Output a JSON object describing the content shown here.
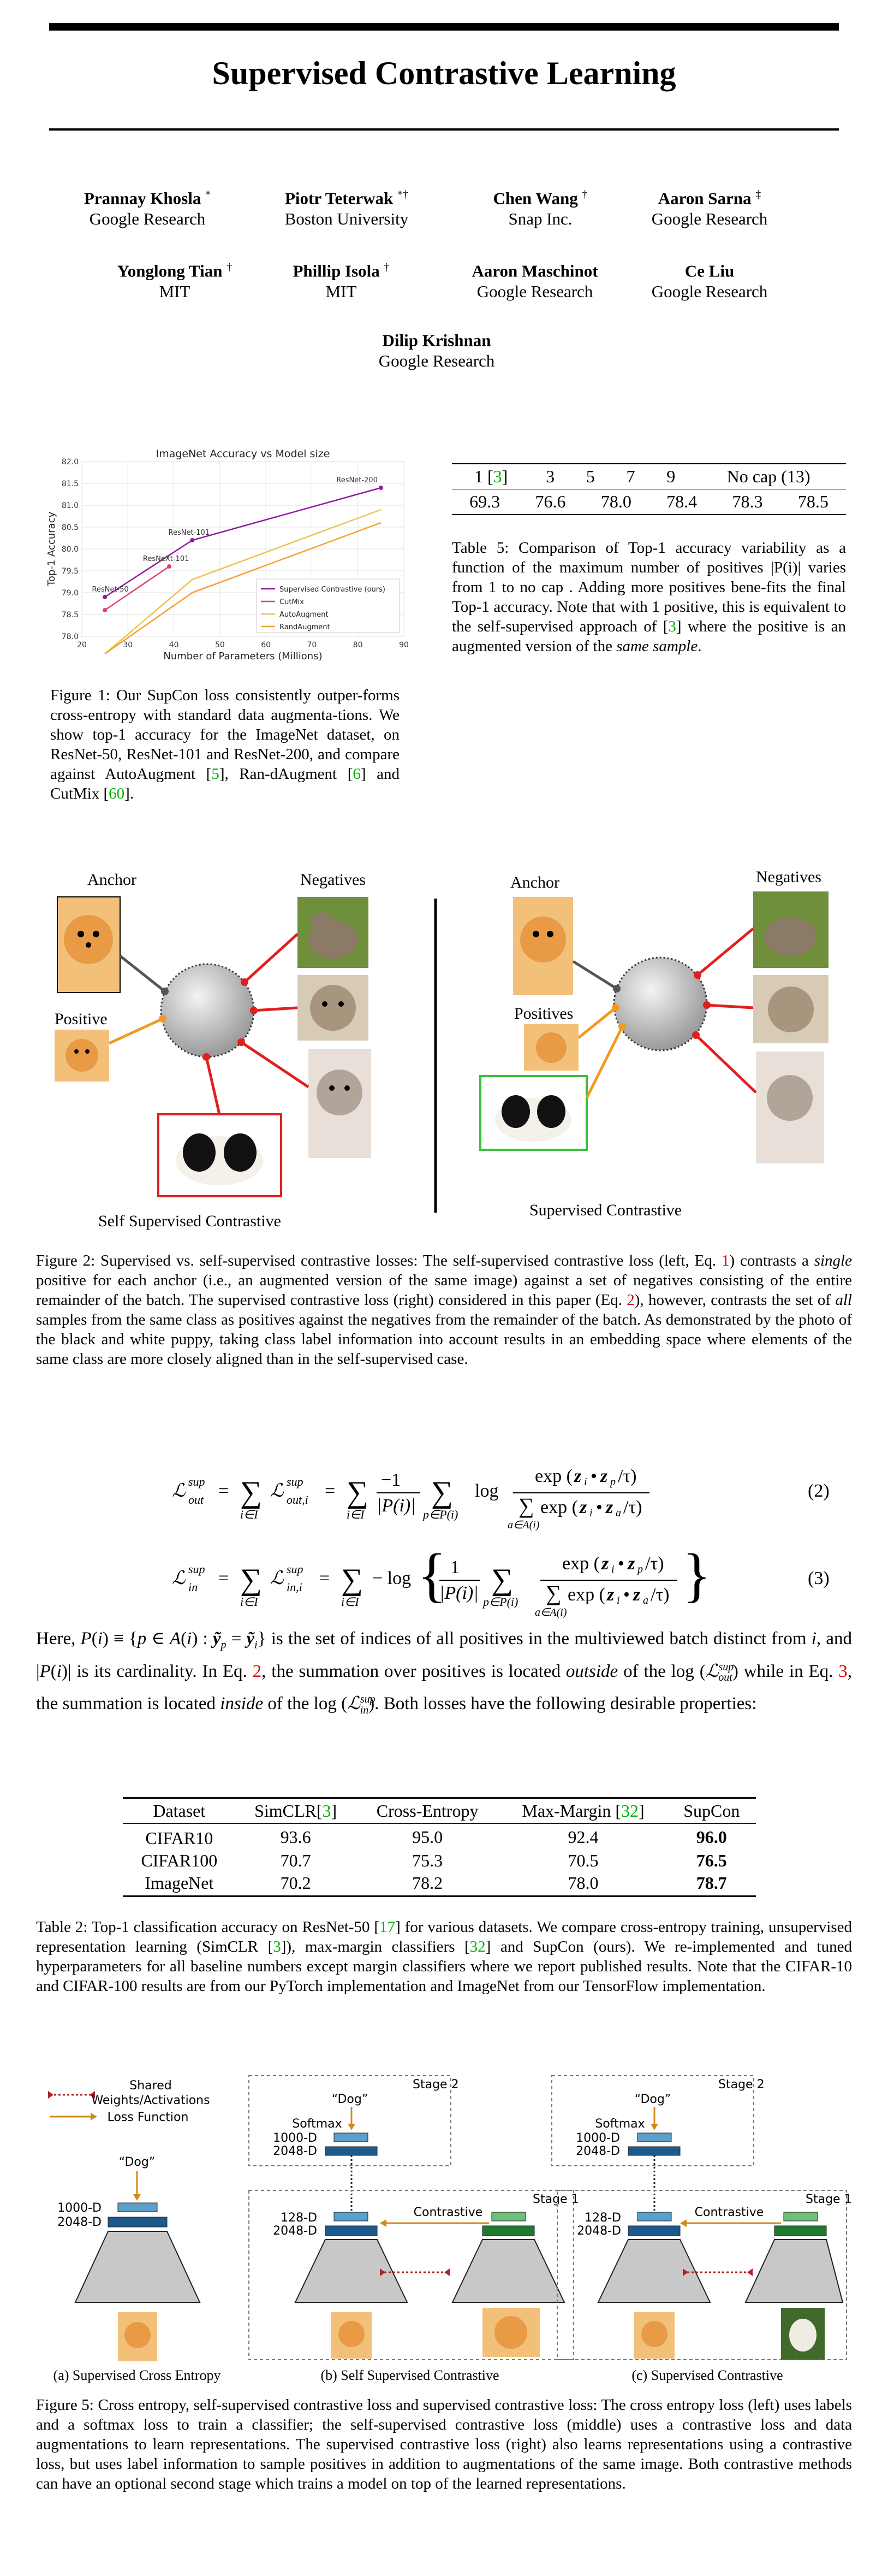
{
  "title": "Supervised Contrastive Learning",
  "authors": [
    {
      "name": "Prannay Khosla",
      "mark": "*",
      "affil": "Google Research"
    },
    {
      "name": "Piotr Teterwak",
      "mark": "*†",
      "affil": "Boston University"
    },
    {
      "name": "Chen Wang",
      "mark": "†",
      "affil": "Snap Inc."
    },
    {
      "name": "Aaron Sarna",
      "mark": "‡",
      "affil": "Google Research"
    },
    {
      "name": "Yonglong Tian",
      "mark": "†",
      "affil": "MIT"
    },
    {
      "name": "Phillip Isola",
      "mark": "†",
      "affil": "MIT"
    },
    {
      "name": "Aaron Maschinot",
      "mark": "",
      "affil": "Google Research"
    },
    {
      "name": "Ce Liu",
      "mark": "",
      "affil": "Google Research"
    },
    {
      "name": "Dilip Krishnan",
      "mark": "",
      "affil": "Google Research"
    }
  ],
  "chart_data": {
    "type": "line",
    "title": "ImageNet Accuracy vs Model size",
    "xlabel": "Number of Parameters (Millions)",
    "ylabel": "Top-1 Accuracy",
    "xlim": [
      20,
      90
    ],
    "ylim": [
      78.0,
      82.0
    ],
    "xticks": [
      "20",
      "30",
      "40",
      "50",
      "60",
      "70",
      "80",
      "90"
    ],
    "yticks": [
      "78.0",
      "78.5",
      "79.0",
      "79.5",
      "80.0",
      "80.5",
      "81.0",
      "81.5",
      "82.0"
    ],
    "legend_position": "bottom-right",
    "grid": true,
    "series": [
      {
        "name": "Supervised Contrastive (ours)",
        "color": "#8e1a9e",
        "marker": true,
        "x": [
          25,
          44,
          85
        ],
        "y": [
          78.9,
          80.2,
          81.4
        ],
        "point_labels": [
          "ResNet-50",
          "ResNet-101",
          "ResNet-200"
        ]
      },
      {
        "name": "CutMix",
        "color": "#e0407a",
        "marker": true,
        "x": [
          25,
          39
        ],
        "y": [
          78.6,
          79.6
        ],
        "point_labels": [
          "",
          "ResNeXt-101"
        ]
      },
      {
        "name": "AutoAugment",
        "color": "#f0c050",
        "marker": false,
        "x": [
          25,
          44,
          85
        ],
        "y": [
          77.6,
          79.3,
          80.9
        ],
        "point_labels": []
      },
      {
        "name": "RandAugment",
        "color": "#f4a030",
        "marker": false,
        "x": [
          25,
          44,
          85
        ],
        "y": [
          77.6,
          79.0,
          80.6
        ],
        "point_labels": []
      }
    ]
  },
  "fig1": {
    "prefix": "Figure 1: Our SupCon loss consistently outper-forms cross-entropy with standard data augmenta-tions. We show top-1 accuracy for the ImageNet dataset, on ResNet-50, ResNet-101 and ResNet-200, and compare against AutoAugment [",
    "r1": "5",
    "mid1": "], Ran-dAugment [",
    "r2": "6",
    "mid2": "] and CutMix [",
    "r3": "60",
    "suffix": "]."
  },
  "table5": {
    "header": [
      "1 [",
      "3",
      "]",
      "3",
      "5",
      "7",
      "9",
      "No cap (13)"
    ],
    "row": [
      "69.3",
      "76.6",
      "78.0",
      "78.4",
      "78.3",
      "78.5"
    ],
    "caption_a": "Table 5: Comparison of Top-1 accuracy variability as a function of the maximum number of positives |P(i)| varies from 1 to no cap . Adding more positives bene-fits the final Top-1 accuracy. Note that with 1 positive, this is equivalent to the self-supervised approach of [",
    "caption_ref": "3",
    "caption_b": "] where the positive is an augmented version of the ",
    "caption_em": "same sample",
    "caption_c": "."
  },
  "fig2": {
    "left_title": "Self Supervised Contrastive",
    "right_title": "Supervised Contrastive",
    "anchor": "Anchor",
    "negatives": "Negatives",
    "positive": "Positive",
    "positives": "Positives",
    "caption_1": "Figure 2: Supervised vs. self-supervised contrastive losses: The self-supervised contrastive loss (left, Eq. ",
    "caption_ref1": "1",
    "caption_2": ") contrasts a ",
    "caption_em1": "single",
    "caption_3": " positive for each anchor (i.e., an augmented version of the same image) against a set of negatives consisting of the entire remainder of the batch. The supervised contrastive loss (right) considered in this paper (Eq. ",
    "caption_ref2": "2",
    "caption_4": "), however, contrasts the set of ",
    "caption_em2": "all",
    "caption_5": " samples from the same class as positives against the negatives from the remainder of the batch. As demonstrated by the photo of the black and white puppy, taking class label information into account results in an embedding space where elements of the same class are more closely aligned than in the self-supervised case."
  },
  "equations": {
    "num2": "(2)",
    "num3": "(3)"
  },
  "para": {
    "t1": "is the set of indices of all positives in the multiviewed batch distinct from ",
    "t2": ", and ",
    "t3": " is its cardinality. In Eq. ",
    "ref2": "2",
    "t4": ", the summation over positives is located ",
    "em1": "outside",
    "t5": " of the log (",
    "t6": ") while in Eq. ",
    "ref3": "3",
    "t7": ", the summation is located ",
    "em2": "inside",
    "t8": " of the log (",
    "t9": "). Both losses have the following desirable properties:"
  },
  "table2": {
    "headers": [
      "Dataset",
      "SimCLR[",
      "3",
      "]",
      "Cross-Entropy",
      "Max-Margin [",
      "32",
      "]",
      "SupCon"
    ],
    "rows": [
      [
        "CIFAR10",
        "93.6",
        "95.0",
        "92.4",
        "96.0"
      ],
      [
        "CIFAR100",
        "70.7",
        "75.3",
        "70.5",
        "76.5"
      ],
      [
        "ImageNet",
        "70.2",
        "78.2",
        "78.0",
        "78.7"
      ]
    ],
    "caption_a": "Table 2: Top-1 classification accuracy on ResNet-50 [",
    "ref17": "17",
    "caption_b": "] for various datasets. We compare cross-entropy training, unsupervised representation learning (SimCLR [",
    "ref3": "3",
    "caption_c": "]), max-margin classifiers [",
    "ref32": "32",
    "caption_d": "] and SupCon (ours). We re-implemented and tuned hyperparameters for all baseline numbers except margin classifiers where we report published results. Note that the CIFAR-10 and CIFAR-100 results are from our PyTorch implementation and ImageNet from our TensorFlow implementation."
  },
  "fig5": {
    "legend_shared": "Shared",
    "legend_shared2": "Weights/Activations",
    "legend_loss": "Loss Function",
    "dog": "“Dog”",
    "softmax": "Softmax",
    "d1000": "1000-D",
    "d2048": "2048-D",
    "d128": "128-D",
    "contrastive": "Contrastive",
    "stage1": "Stage 1",
    "stage2": "Stage 2",
    "label_a": "(a) Supervised Cross Entropy",
    "label_b": "(b) Self Supervised Contrastive",
    "label_c": "(c) Supervised Contrastive",
    "caption": "Figure 5: Cross entropy, self-supervised contrastive loss and supervised contrastive loss: The cross entropy loss (left) uses labels and a softmax loss to train a classifier; the self-supervised contrastive loss (middle) uses a contrastive loss and data augmentations to learn representations. The supervised contrastive loss (right) also learns representations using a contrastive loss, but uses label information to sample positives in addition to augmentations of the same image. Both contrastive methods can have an optional second stage which trains a model on top of the learned representations."
  }
}
